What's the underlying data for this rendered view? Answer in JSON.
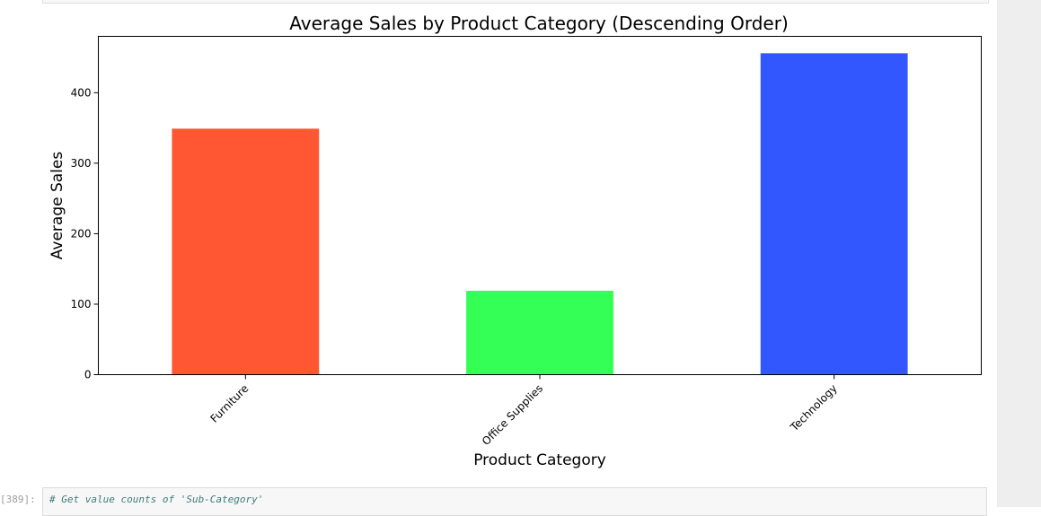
{
  "chart_data": {
    "type": "bar",
    "title": "Average Sales by Product Category (Descending Order)",
    "xlabel": "Product Category",
    "ylabel": "Average Sales",
    "categories": [
      "Furniture",
      "Office Supplies",
      "Technology"
    ],
    "values": [
      349,
      119,
      456
    ],
    "colors": [
      "#ff5733",
      "#33ff57",
      "#3357ff"
    ],
    "ylim": [
      0,
      480
    ],
    "yticks": [
      0,
      100,
      200,
      300,
      400
    ],
    "grid": false,
    "legend": "none"
  },
  "notebook": {
    "next_cell_prompt": "[389]:",
    "next_cell_code": "# Get value counts of 'Sub-Category'"
  }
}
